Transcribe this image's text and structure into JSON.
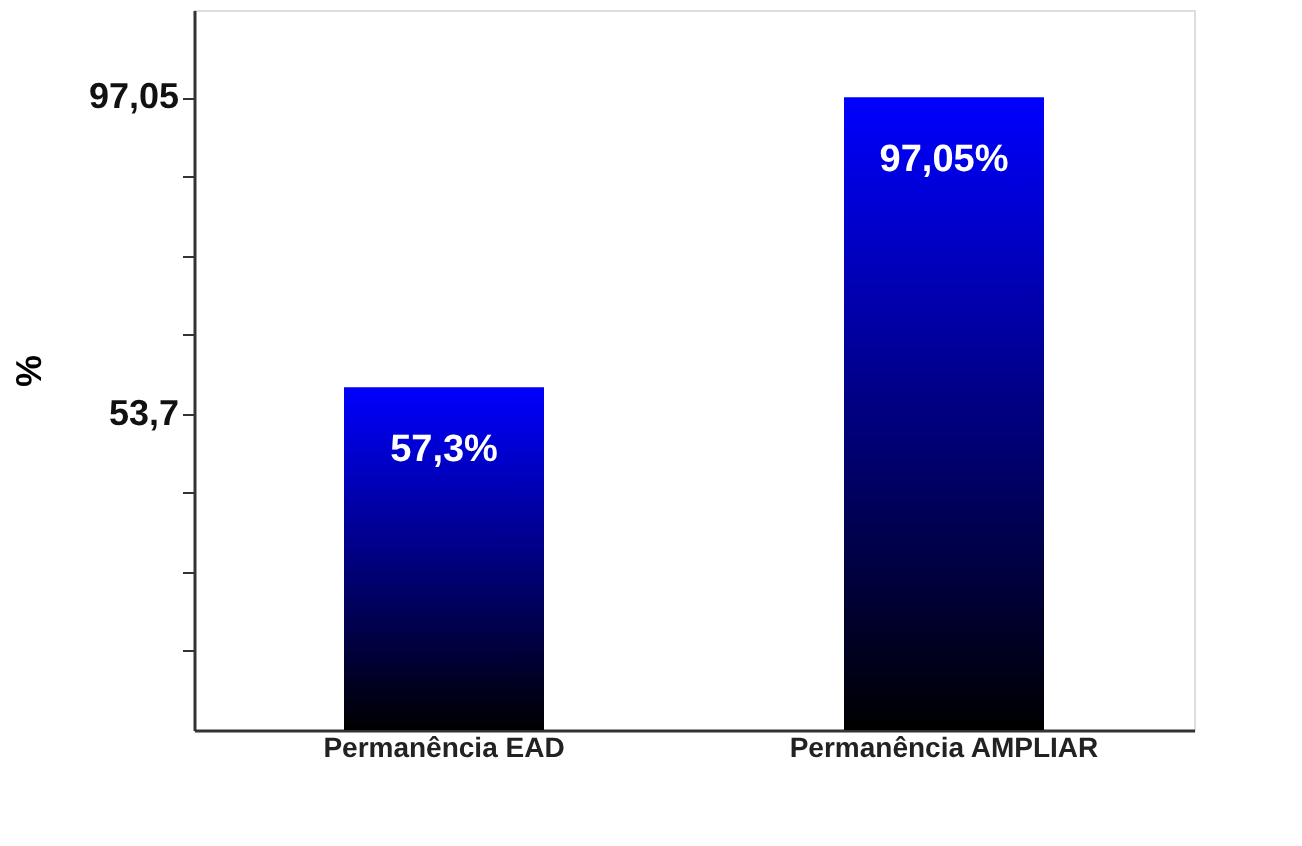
{
  "chart_data": {
    "type": "bar",
    "ylabel": "%",
    "categories": [
      "Permanência EAD",
      "Permanência AMPLIAR"
    ],
    "values": [
      57.3,
      97.05
    ],
    "colors": [
      "#0000ff",
      "#0000ff"
    ],
    "value_labels": [
      "57,3%",
      "97,05%"
    ],
    "ylim": [
      10.35,
      109
    ],
    "yticks": [
      {
        "value": 21.19,
        "label": null
      },
      {
        "value": 32.03,
        "label": null
      },
      {
        "value": 42.86,
        "label": null
      },
      {
        "value": 53.7,
        "label": "53,7"
      },
      {
        "value": 64.54,
        "label": null
      },
      {
        "value": 75.38,
        "label": null
      },
      {
        "value": 86.21,
        "label": null
      },
      {
        "value": 97.05,
        "label": "97,05"
      }
    ],
    "grid": false
  }
}
